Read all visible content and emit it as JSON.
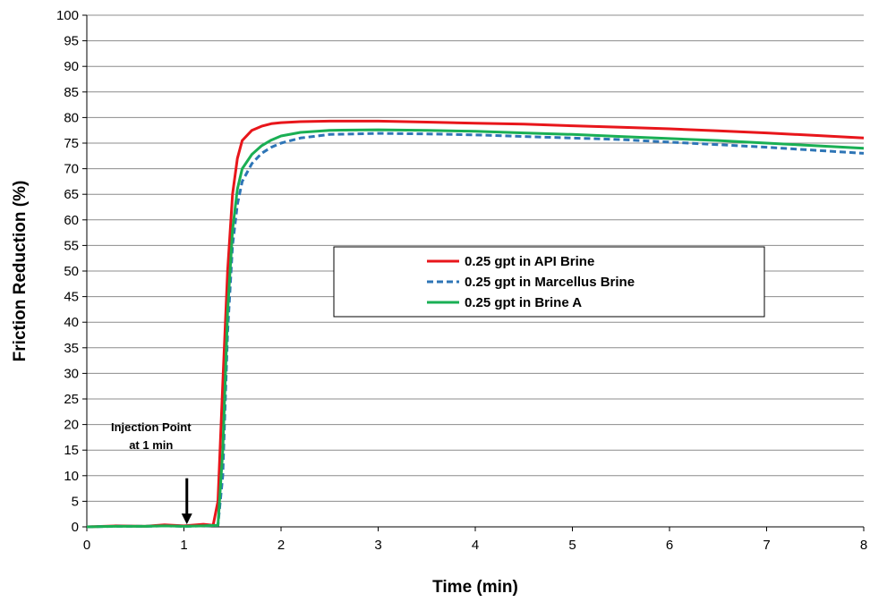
{
  "chart_data": {
    "type": "line",
    "xlabel": "Time (min)",
    "ylabel": "Friction Reduction (%)",
    "xlim": [
      0,
      8
    ],
    "ylim": [
      0,
      100
    ],
    "xticks": [
      0,
      1,
      2,
      3,
      4,
      5,
      6,
      7,
      8
    ],
    "yticks": [
      0,
      5,
      10,
      15,
      20,
      25,
      30,
      35,
      40,
      45,
      50,
      55,
      60,
      65,
      70,
      75,
      80,
      85,
      90,
      95,
      100
    ],
    "grid": "horizontal",
    "legend_position": "center-right",
    "series": [
      {
        "name": "0.25 gpt in API Brine",
        "color": "#e8161b",
        "style": "solid",
        "x": [
          0,
          0.3,
          0.6,
          0.8,
          1.0,
          1.2,
          1.3,
          1.35,
          1.4,
          1.45,
          1.5,
          1.55,
          1.6,
          1.7,
          1.8,
          1.9,
          2.0,
          2.2,
          2.5,
          3.0,
          3.5,
          4.0,
          4.5,
          5.0,
          5.5,
          6.0,
          6.5,
          7.0,
          7.5,
          8.0
        ],
        "y": [
          0,
          0.2,
          0.1,
          0.4,
          0.2,
          0.5,
          0.3,
          5,
          28,
          50,
          65,
          72,
          75.5,
          77.5,
          78.3,
          78.8,
          79.0,
          79.2,
          79.3,
          79.3,
          79.1,
          78.9,
          78.7,
          78.4,
          78.1,
          77.8,
          77.4,
          77.0,
          76.5,
          76.0
        ]
      },
      {
        "name": "0.25 gpt in Marcellus Brine",
        "color": "#2e75b6",
        "style": "dashed",
        "x": [
          0,
          0.3,
          0.6,
          0.8,
          1.0,
          1.2,
          1.35,
          1.4,
          1.45,
          1.5,
          1.55,
          1.6,
          1.7,
          1.8,
          1.9,
          2.0,
          2.2,
          2.5,
          3.0,
          3.5,
          4.0,
          4.5,
          5.0,
          5.5,
          6.0,
          6.5,
          7.0,
          7.5,
          8.0
        ],
        "y": [
          0,
          0.1,
          0.1,
          0.2,
          0.1,
          0.2,
          0.3,
          10,
          38,
          55,
          63,
          67.5,
          71,
          73,
          74.2,
          75.0,
          76.0,
          76.7,
          76.9,
          76.8,
          76.6,
          76.3,
          76.0,
          75.7,
          75.2,
          74.7,
          74.2,
          73.6,
          73.0
        ]
      },
      {
        "name": "0.25 gpt in Brine A",
        "color": "#1aaf54",
        "style": "solid",
        "x": [
          0,
          0.3,
          0.6,
          0.8,
          1.0,
          1.2,
          1.35,
          1.4,
          1.45,
          1.5,
          1.55,
          1.6,
          1.7,
          1.8,
          1.9,
          2.0,
          2.2,
          2.5,
          3.0,
          3.5,
          4.0,
          4.5,
          5.0,
          5.5,
          6.0,
          6.5,
          7.0,
          7.5,
          8.0
        ],
        "y": [
          0,
          0.1,
          0.1,
          0.2,
          0.1,
          0.2,
          0.3,
          15,
          42,
          58,
          66,
          70,
          72.8,
          74.5,
          75.6,
          76.4,
          77.1,
          77.5,
          77.6,
          77.5,
          77.3,
          77.0,
          76.7,
          76.3,
          75.9,
          75.5,
          75.0,
          74.5,
          74.0
        ]
      }
    ],
    "annotations": [
      {
        "lines": [
          "Injection Point",
          "at 1 min"
        ],
        "arrow_x": 1.03,
        "arrow_from_y": 9.5,
        "arrow_to_y": 0.5
      }
    ]
  }
}
